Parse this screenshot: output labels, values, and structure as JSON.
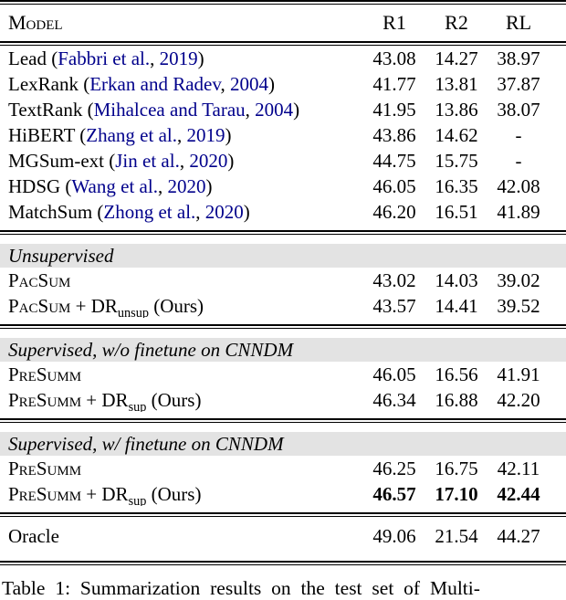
{
  "colors": {
    "citation_blue": "#00008B",
    "section_band_gray": "#e3e3e3",
    "rule_black": "#000000"
  },
  "header": {
    "model_label": "Model",
    "metrics": [
      "R1",
      "R2",
      "RL"
    ]
  },
  "sections": [
    {
      "label": null,
      "rows": [
        {
          "name": [
            {
              "t": "Lead ("
            },
            {
              "t": "Fabbri et al.",
              "s": "cite"
            },
            {
              "t": ", "
            },
            {
              "t": "2019",
              "s": "cite"
            },
            {
              "t": ")"
            }
          ],
          "values": [
            "43.08",
            "14.27",
            "38.97"
          ]
        },
        {
          "name": [
            {
              "t": "LexRank ("
            },
            {
              "t": "Erkan and Radev",
              "s": "cite"
            },
            {
              "t": ", "
            },
            {
              "t": "2004",
              "s": "cite"
            },
            {
              "t": ")"
            }
          ],
          "values": [
            "41.77",
            "13.81",
            "37.87"
          ]
        },
        {
          "name": [
            {
              "t": "TextRank ("
            },
            {
              "t": "Mihalcea and Tarau",
              "s": "cite"
            },
            {
              "t": ", "
            },
            {
              "t": "2004",
              "s": "cite"
            },
            {
              "t": ")"
            }
          ],
          "values": [
            "41.95",
            "13.86",
            "38.07"
          ]
        },
        {
          "name": [
            {
              "t": "HiBERT ("
            },
            {
              "t": "Zhang et al.",
              "s": "cite"
            },
            {
              "t": ", "
            },
            {
              "t": "2019",
              "s": "cite"
            },
            {
              "t": ")"
            }
          ],
          "values": [
            "43.86",
            "14.62",
            "-"
          ]
        },
        {
          "name": [
            {
              "t": "MGSum-ext ("
            },
            {
              "t": "Jin et al.",
              "s": "cite"
            },
            {
              "t": ", "
            },
            {
              "t": "2020",
              "s": "cite"
            },
            {
              "t": ")"
            }
          ],
          "values": [
            "44.75",
            "15.75",
            "-"
          ]
        },
        {
          "name": [
            {
              "t": "HDSG ("
            },
            {
              "t": "Wang et al.",
              "s": "cite"
            },
            {
              "t": ", "
            },
            {
              "t": "2020",
              "s": "cite"
            },
            {
              "t": ")"
            }
          ],
          "values": [
            "46.05",
            "16.35",
            "42.08"
          ]
        },
        {
          "name": [
            {
              "t": "MatchSum ("
            },
            {
              "t": "Zhong et al.",
              "s": "cite"
            },
            {
              "t": ", "
            },
            {
              "t": "2020",
              "s": "cite"
            },
            {
              "t": ")"
            }
          ],
          "values": [
            "46.20",
            "16.51",
            "41.89"
          ]
        }
      ]
    },
    {
      "label": "Unsupervised",
      "rows": [
        {
          "name": [
            {
              "t": "PacSum",
              "s": "sc"
            }
          ],
          "values": [
            "43.02",
            "14.03",
            "39.02"
          ]
        },
        {
          "name": [
            {
              "t": "PacSum",
              "s": "sc"
            },
            {
              "t": " + DR"
            },
            {
              "t": "unsup",
              "s": "sub"
            },
            {
              "t": " (Ours)"
            }
          ],
          "values": [
            "43.57",
            "14.41",
            "39.52"
          ]
        }
      ]
    },
    {
      "label": "Supervised, w/o finetune on CNNDM",
      "rows": [
        {
          "name": [
            {
              "t": "PreSumm",
              "s": "sc"
            }
          ],
          "values": [
            "46.05",
            "16.56",
            "41.91"
          ]
        },
        {
          "name": [
            {
              "t": "PreSumm",
              "s": "sc"
            },
            {
              "t": " + DR"
            },
            {
              "t": "sup",
              "s": "sub"
            },
            {
              "t": " (Ours)"
            }
          ],
          "values": [
            "46.34",
            "16.88",
            "42.20"
          ]
        }
      ]
    },
    {
      "label": "Supervised, w/ finetune on CNNDM",
      "rows": [
        {
          "name": [
            {
              "t": "PreSumm",
              "s": "sc"
            }
          ],
          "values": [
            "46.25",
            "16.75",
            "42.11"
          ]
        },
        {
          "name": [
            {
              "t": "PreSumm",
              "s": "sc"
            },
            {
              "t": " + DR"
            },
            {
              "t": "sup",
              "s": "sub"
            },
            {
              "t": " (Ours)"
            }
          ],
          "values": [
            "46.57",
            "17.10",
            "42.44"
          ],
          "bold": true
        }
      ]
    },
    {
      "label": null,
      "padded": true,
      "rows": [
        {
          "name": [
            {
              "t": "Oracle"
            }
          ],
          "values": [
            "49.06",
            "21.54",
            "44.27"
          ]
        }
      ]
    }
  ],
  "caption": "Table 1:  Summarization results on the test set of Multi-"
}
